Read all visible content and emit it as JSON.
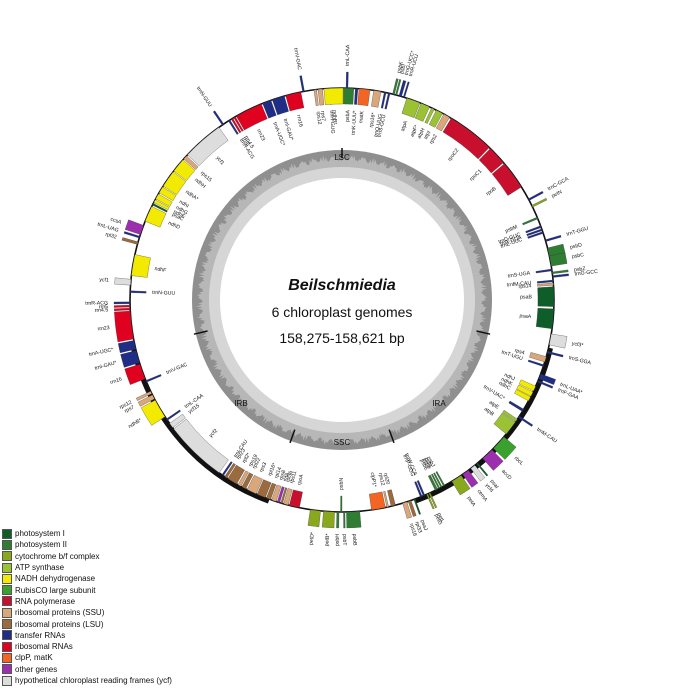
{
  "title": {
    "organism": "Beilschmiedia",
    "genomes": "6 chloroplast genomes",
    "size_range": "158,275-158,621 bp"
  },
  "regions": {
    "lsc": "LSC",
    "ssc": "SSC",
    "ira": "IRA",
    "irb": "IRB"
  },
  "legend": [
    {
      "label": "photosystem I",
      "color": "#0f5e2a"
    },
    {
      "label": "photosystem II",
      "color": "#2e7d32"
    },
    {
      "label": "cytochrome b/f complex",
      "color": "#8aa81e"
    },
    {
      "label": "ATP synthase",
      "color": "#9ac234"
    },
    {
      "label": "NADH dehydrogenase",
      "color": "#f2ea00"
    },
    {
      "label": "RubisCO large subunit",
      "color": "#3aa12f"
    },
    {
      "label": "RNA polymerase",
      "color": "#c8102e"
    },
    {
      "label": "ribosomal proteins (SSU)",
      "color": "#d9a77a"
    },
    {
      "label": "ribosomal proteins (LSU)",
      "color": "#9c6b3d"
    },
    {
      "label": "transfer RNAs",
      "color": "#1f2d86"
    },
    {
      "label": "ribosomal RNAs",
      "color": "#e00020"
    },
    {
      "label": "clpP, matK",
      "color": "#f26522"
    },
    {
      "label": "other genes",
      "color": "#9b2fae"
    },
    {
      "label": "hypothetical chloroplast reading frames (ycf)",
      "color": "#dddddd"
    }
  ],
  "genes": [
    {
      "name": "psbA",
      "start": 0.4,
      "end": 3.2,
      "strand": "in",
      "cat": "photosystem II"
    },
    {
      "name": "trnH-GUG",
      "start": 356.5,
      "end": 357.2,
      "strand": "in",
      "cat": "transfer RNAs"
    },
    {
      "name": "trnK-UUU*",
      "start": 3.6,
      "end": 4.3,
      "strand": "in",
      "cat": "transfer RNAs"
    },
    {
      "name": "matK",
      "start": 4.6,
      "end": 7.6,
      "strand": "in",
      "cat": "clpP, matK"
    },
    {
      "name": "rps16*",
      "start": 8.6,
      "end": 10.6,
      "strand": "in",
      "cat": "ribosomal proteins (SSU)"
    },
    {
      "name": "trnQ-UUG",
      "start": 11.5,
      "end": 12.0,
      "strand": "in",
      "cat": "transfer RNAs"
    },
    {
      "name": "trnS-GCU",
      "start": 12.6,
      "end": 13.1,
      "strand": "in",
      "cat": "transfer RNAs"
    },
    {
      "name": "psbK",
      "start": 13.8,
      "end": 14.3,
      "strand": "out",
      "cat": "photosystem II"
    },
    {
      "name": "psbI",
      "start": 14.6,
      "end": 15.0,
      "strand": "out",
      "cat": "photosystem II"
    },
    {
      "name": "trnG-UCC*",
      "start": 15.6,
      "end": 16.3,
      "strand": "out",
      "cat": "transfer RNAs"
    },
    {
      "name": "trnR-UCU",
      "start": 16.8,
      "end": 17.2,
      "strand": "out",
      "cat": "transfer RNAs"
    },
    {
      "name": "atpA",
      "start": 17.8,
      "end": 21.6,
      "strand": "in",
      "cat": "ATP synthase"
    },
    {
      "name": "atpF*",
      "start": 21.9,
      "end": 24.4,
      "strand": "in",
      "cat": "ATP synthase"
    },
    {
      "name": "atpH",
      "start": 25.0,
      "end": 25.8,
      "strand": "in",
      "cat": "ATP synthase"
    },
    {
      "name": "atpI",
      "start": 26.4,
      "end": 28.3,
      "strand": "in",
      "cat": "ATP synthase"
    },
    {
      "name": "rps2",
      "start": 28.7,
      "end": 30.5,
      "strand": "in",
      "cat": "ribosomal proteins (SSU)"
    },
    {
      "name": "rpoC2",
      "start": 31.0,
      "end": 44.0,
      "strand": "in",
      "cat": "RNA polymerase"
    },
    {
      "name": "rpoC1",
      "start": 44.4,
      "end": 49.6,
      "strand": "in",
      "cat": "RNA polymerase"
    },
    {
      "name": "rpoB",
      "start": 50.0,
      "end": 57.8,
      "strand": "in",
      "cat": "RNA polymerase"
    },
    {
      "name": "trnC-GCA",
      "start": 61.5,
      "end": 62.0,
      "strand": "out",
      "cat": "transfer RNAs"
    },
    {
      "name": "petN",
      "start": 63.5,
      "end": 64.0,
      "strand": "out",
      "cat": "cytochrome b/f complex"
    },
    {
      "name": "psbM",
      "start": 67.0,
      "end": 67.5,
      "strand": "in",
      "cat": "photosystem II"
    },
    {
      "name": "trnD-GUC",
      "start": 69.5,
      "end": 70.0,
      "strand": "in",
      "cat": "transfer RNAs"
    },
    {
      "name": "trnY-GUA",
      "start": 70.4,
      "end": 70.9,
      "strand": "in",
      "cat": "transfer RNAs"
    },
    {
      "name": "trnE-UUC",
      "start": 71.2,
      "end": 71.7,
      "strand": "in",
      "cat": "transfer RNAs"
    },
    {
      "name": "trnT-GGU",
      "start": 73.5,
      "end": 74.0,
      "strand": "out",
      "cat": "transfer RNAs"
    },
    {
      "name": "psbD",
      "start": 75.8,
      "end": 78.3,
      "strand": "out",
      "cat": "photosystem II"
    },
    {
      "name": "psbC",
      "start": 78.0,
      "end": 80.8,
      "strand": "out",
      "cat": "photosystem II"
    },
    {
      "name": "trnS-UGA",
      "start": 81.6,
      "end": 82.1,
      "strand": "in",
      "cat": "transfer RNAs"
    },
    {
      "name": "psbZ",
      "start": 82.4,
      "end": 82.9,
      "strand": "out",
      "cat": "photosystem II"
    },
    {
      "name": "trnG-GCC",
      "start": 83.4,
      "end": 83.9,
      "strand": "out",
      "cat": "transfer RNAs"
    },
    {
      "name": "trnfM-CAU",
      "start": 84.6,
      "end": 85.1,
      "strand": "in",
      "cat": "transfer RNAs"
    },
    {
      "name": "rps14",
      "start": 85.4,
      "end": 86.0,
      "strand": "in",
      "cat": "ribosomal proteins (SSU)"
    },
    {
      "name": "psaB",
      "start": 86.4,
      "end": 91.8,
      "strand": "in",
      "cat": "photosystem I"
    },
    {
      "name": "psaA",
      "start": 92.4,
      "end": 97.8,
      "strand": "in",
      "cat": "photosystem I"
    },
    {
      "name": "ycf3*",
      "start": 99.2,
      "end": 102.2,
      "strand": "out",
      "cat": "hypothetical chloroplast reading frames (ycf)"
    },
    {
      "name": "trnS-GGA",
      "start": 104.0,
      "end": 104.5,
      "strand": "out",
      "cat": "transfer RNAs"
    },
    {
      "name": "rps4",
      "start": 105.5,
      "end": 107.0,
      "strand": "in",
      "cat": "ribosomal proteins (SSU)"
    },
    {
      "name": "trnT-UGU",
      "start": 107.8,
      "end": 108.3,
      "strand": "in",
      "cat": "transfer RNAs"
    },
    {
      "name": "trnL-UAA*",
      "start": 110.4,
      "end": 111.8,
      "strand": "out",
      "cat": "transfer RNAs"
    },
    {
      "name": "trnF-GAA",
      "start": 112.3,
      "end": 112.8,
      "strand": "out",
      "cat": "transfer RNAs"
    },
    {
      "name": "ndhJ",
      "start": 114.0,
      "end": 115.4,
      "strand": "in",
      "cat": "NADH dehydrogenase"
    },
    {
      "name": "ndhK",
      "start": 115.7,
      "end": 117.0,
      "strand": "in",
      "cat": "NADH dehydrogenase"
    },
    {
      "name": "ndhC",
      "start": 117.2,
      "end": 118.4,
      "strand": "in",
      "cat": "NADH dehydrogenase"
    },
    {
      "name": "trnV-UAC*",
      "start": 121.0,
      "end": 121.7,
      "strand": "in",
      "cat": "transfer RNAs"
    },
    {
      "name": "trnM-CAU",
      "start": 123.2,
      "end": 123.7,
      "strand": "out",
      "cat": "transfer RNAs"
    },
    {
      "name": "atpE",
      "start": 124.2,
      "end": 125.0,
      "strand": "in",
      "cat": "ATP synthase"
    },
    {
      "name": "atpB",
      "start": 125.2,
      "end": 129.2,
      "strand": "in",
      "cat": "ATP synthase"
    },
    {
      "name": "rbcL",
      "start": 130.2,
      "end": 134.4,
      "strand": "out",
      "cat": "RubisCO large subunit"
    },
    {
      "name": "accD",
      "start": 135.0,
      "end": 138.4,
      "strand": "out",
      "cat": "other genes"
    },
    {
      "name": "psaI",
      "start": 140.2,
      "end": 140.6,
      "strand": "out",
      "cat": "photosystem I"
    },
    {
      "name": "ycf4",
      "start": 141.2,
      "end": 142.6,
      "strand": "out",
      "cat": "hypothetical chloroplast reading frames (ycf)"
    },
    {
      "name": "cemA",
      "start": 143.4,
      "end": 145.3,
      "strand": "out",
      "cat": "other genes"
    },
    {
      "name": "petA",
      "start": 145.8,
      "end": 148.8,
      "strand": "out",
      "cat": "cytochrome b/f complex"
    },
    {
      "name": "psbJ",
      "start": 151.0,
      "end": 151.4,
      "strand": "in",
      "cat": "photosystem II"
    },
    {
      "name": "psbL",
      "start": 151.8,
      "end": 152.2,
      "strand": "in",
      "cat": "photosystem II"
    },
    {
      "name": "psbF",
      "start": 152.5,
      "end": 152.9,
      "strand": "in",
      "cat": "photosystem II"
    },
    {
      "name": "psbE",
      "start": 153.2,
      "end": 153.9,
      "strand": "in",
      "cat": "photosystem II"
    },
    {
      "name": "petL",
      "start": 155.4,
      "end": 155.8,
      "strand": "out",
      "cat": "cytochrome b/f complex"
    },
    {
      "name": "petG",
      "start": 156.1,
      "end": 156.5,
      "strand": "out",
      "cat": "cytochrome b/f complex"
    },
    {
      "name": "trnW-CCA",
      "start": 157.0,
      "end": 157.5,
      "strand": "in",
      "cat": "transfer RNAs"
    },
    {
      "name": "trnP-UGG",
      "start": 157.8,
      "end": 158.3,
      "strand": "in",
      "cat": "transfer RNAs"
    },
    {
      "name": "psaJ",
      "start": 159.8,
      "end": 160.2,
      "strand": "out",
      "cat": "photosystem I"
    },
    {
      "name": "rpl33",
      "start": 161.0,
      "end": 161.8,
      "strand": "out",
      "cat": "ribosomal proteins (LSU)"
    },
    {
      "name": "rps18",
      "start": 162.2,
      "end": 163.4,
      "strand": "out",
      "cat": "ribosomal proteins (SSU)"
    },
    {
      "name": "rpl20",
      "start": 165.4,
      "end": 166.6,
      "strand": "in",
      "cat": "ribosomal proteins (LSU)"
    },
    {
      "name": "rps12",
      "start": 167.3,
      "end": 167.8,
      "strand": "in",
      "cat": "ribosomal proteins (SSU)"
    },
    {
      "name": "clpP1*",
      "start": 168.2,
      "end": 172.0,
      "strand": "in",
      "cat": "clpP, matK"
    },
    {
      "name": "psbB",
      "start": 175.2,
      "end": 178.8,
      "strand": "out",
      "cat": "photosystem II"
    },
    {
      "name": "psbT",
      "start": 179.2,
      "end": 179.6,
      "strand": "out",
      "cat": "photosystem II"
    },
    {
      "name": "psbN",
      "start": 180.0,
      "end": 180.4,
      "strand": "in",
      "cat": "photosystem II"
    },
    {
      "name": "psbH",
      "start": 180.8,
      "end": 181.4,
      "strand": "out",
      "cat": "photosystem II"
    },
    {
      "name": "petB*",
      "start": 182.0,
      "end": 185.0,
      "strand": "out",
      "cat": "cytochrome b/f complex"
    },
    {
      "name": "petD*",
      "start": 185.8,
      "end": 188.6,
      "strand": "out",
      "cat": "cytochrome b/f complex"
    },
    {
      "name": "rpoA",
      "start": 191.6,
      "end": 194.4,
      "strand": "in",
      "cat": "RNA polymerase"
    },
    {
      "name": "rps11",
      "start": 194.7,
      "end": 196.0,
      "strand": "in",
      "cat": "ribosomal proteins (SSU)"
    },
    {
      "name": "rpl36",
      "start": 196.3,
      "end": 196.8,
      "strand": "in",
      "cat": "ribosomal proteins (LSU)"
    },
    {
      "name": "infA",
      "start": 197.1,
      "end": 197.8,
      "strand": "in",
      "cat": "other genes"
    },
    {
      "name": "rps8",
      "start": 198.1,
      "end": 199.4,
      "strand": "in",
      "cat": "ribosomal proteins (SSU)"
    },
    {
      "name": "rpl14",
      "start": 199.7,
      "end": 200.9,
      "strand": "in",
      "cat": "ribosomal proteins (LSU)"
    },
    {
      "name": "rpl16*",
      "start": 201.2,
      "end": 203.6,
      "strand": "in",
      "cat": "ribosomal proteins (LSU)"
    },
    {
      "name": "rps3",
      "start": 203.9,
      "end": 206.6,
      "strand": "in",
      "cat": "ribosomal proteins (SSU)"
    },
    {
      "name": "rpl22",
      "start": 207.0,
      "end": 208.2,
      "strand": "in",
      "cat": "ribosomal proteins (LSU)"
    },
    {
      "name": "rps19",
      "start": 208.5,
      "end": 209.4,
      "strand": "in",
      "cat": "ribosomal proteins (SSU)"
    },
    {
      "name": "rpl2*",
      "start": 209.8,
      "end": 212.6,
      "strand": "in",
      "cat": "ribosomal proteins (LSU)"
    },
    {
      "name": "rpl23",
      "start": 212.9,
      "end": 213.6,
      "strand": "in",
      "cat": "ribosomal proteins (LSU)"
    },
    {
      "name": "trnI-CAU",
      "start": 214.0,
      "end": 214.5,
      "strand": "in",
      "cat": "transfer RNAs"
    },
    {
      "name": "ycf2",
      "start": 215.4,
      "end": 232.6,
      "strand": "in",
      "cat": "hypothetical chloroplast reading frames (ycf)"
    },
    {
      "name": "ycf15",
      "start": 233.0,
      "end": 234.4,
      "strand": "in",
      "cat": "hypothetical chloroplast reading frames (ycf)"
    },
    {
      "name": "trnL-CAA",
      "start": 235.4,
      "end": 235.9,
      "strand": "in",
      "cat": "transfer RNAs"
    },
    {
      "name": "ndhB*",
      "start": 236.6,
      "end": 241.8,
      "strand": "out",
      "cat": "NADH dehydrogenase"
    },
    {
      "name": "rps7",
      "start": 242.2,
      "end": 243.4,
      "strand": "out",
      "cat": "ribosomal proteins (SSU)"
    },
    {
      "name": "rps12",
      "start": 243.8,
      "end": 244.5,
      "strand": "out",
      "cat": "ribosomal proteins (SSU)"
    },
    {
      "name": "trnV-GAC",
      "start": 247.2,
      "end": 247.7,
      "strand": "in",
      "cat": "transfer RNAs"
    },
    {
      "name": "rrn16",
      "start": 248.2,
      "end": 252.4,
      "strand": "out",
      "cat": "ribosomal RNAs"
    },
    {
      "name": "trnI-GAU*",
      "start": 252.8,
      "end": 256.2,
      "strand": "out",
      "cat": "transfer RNAs"
    },
    {
      "name": "trnA-UGC*",
      "start": 256.6,
      "end": 259.0,
      "strand": "out",
      "cat": "transfer RNAs"
    },
    {
      "name": "rrn23",
      "start": 259.4,
      "end": 267.0,
      "strand": "out",
      "cat": "ribosomal RNAs"
    },
    {
      "name": "rrn4.5",
      "start": 267.3,
      "end": 267.8,
      "strand": "out",
      "cat": "ribosomal RNAs"
    },
    {
      "name": "rrn5",
      "start": 268.1,
      "end": 268.6,
      "strand": "out",
      "cat": "ribosomal RNAs"
    },
    {
      "name": "trnR-ACG",
      "start": 269.0,
      "end": 269.5,
      "strand": "out",
      "cat": "transfer RNAs"
    },
    {
      "name": "trnN-GUU",
      "start": 272.0,
      "end": 272.5,
      "strand": "in",
      "cat": "transfer RNAs"
    },
    {
      "name": "ycf1",
      "start": 274.0,
      "end": 275.6,
      "strand": "out",
      "cat": "hypothetical chloroplast reading frames (ycf)"
    },
    {
      "name": "ndhF",
      "start": 276.6,
      "end": 282.4,
      "strand": "in",
      "cat": "NADH dehydrogenase"
    },
    {
      "name": "rpl32",
      "start": 285.2,
      "end": 285.9,
      "strand": "out",
      "cat": "ribosomal proteins (LSU)"
    },
    {
      "name": "trnL-UAG",
      "start": 287.0,
      "end": 287.5,
      "strand": "out",
      "cat": "transfer RNAs"
    },
    {
      "name": "ccsA",
      "start": 288.0,
      "end": 290.6,
      "strand": "out",
      "cat": "other genes"
    },
    {
      "name": "ndhD",
      "start": 291.8,
      "end": 296.2,
      "strand": "in",
      "cat": "NADH dehydrogenase"
    },
    {
      "name": "psaC",
      "start": 296.6,
      "end": 297.1,
      "strand": "in",
      "cat": "photosystem I"
    },
    {
      "name": "ndhE",
      "start": 297.4,
      "end": 298.2,
      "strand": "in",
      "cat": "NADH dehydrogenase"
    },
    {
      "name": "ndhG",
      "start": 298.5,
      "end": 300.0,
      "strand": "in",
      "cat": "NADH dehydrogenase"
    },
    {
      "name": "ndhI",
      "start": 300.4,
      "end": 302.2,
      "strand": "in",
      "cat": "NADH dehydrogenase"
    },
    {
      "name": "ndhA*",
      "start": 302.5,
      "end": 307.2,
      "strand": "in",
      "cat": "NADH dehydrogenase"
    },
    {
      "name": "ndhH",
      "start": 307.5,
      "end": 311.4,
      "strand": "in",
      "cat": "NADH dehydrogenase"
    },
    {
      "name": "rps15",
      "start": 311.7,
      "end": 312.8,
      "strand": "in",
      "cat": "ribosomal proteins (SSU)"
    },
    {
      "name": "ycf1",
      "start": 313.2,
      "end": 324.5,
      "strand": "in",
      "cat": "hypothetical chloroplast reading frames (ycf)"
    },
    {
      "name": "trnN-GUU",
      "start": 325.6,
      "end": 326.1,
      "strand": "out",
      "cat": "transfer RNAs"
    },
    {
      "name": "trnR-ACG",
      "start": 327.6,
      "end": 328.1,
      "strand": "in",
      "cat": "transfer RNAs"
    },
    {
      "name": "rrn5",
      "start": 328.5,
      "end": 329.0,
      "strand": "in",
      "cat": "ribosomal RNAs"
    },
    {
      "name": "rrn4.5",
      "start": 329.3,
      "end": 329.8,
      "strand": "in",
      "cat": "ribosomal RNAs"
    },
    {
      "name": "rrn23",
      "start": 330.1,
      "end": 337.6,
      "strand": "in",
      "cat": "ribosomal RNAs"
    },
    {
      "name": "trnA-UGC*",
      "start": 338.0,
      "end": 340.4,
      "strand": "in",
      "cat": "transfer RNAs"
    },
    {
      "name": "trnI-GAU*",
      "start": 340.8,
      "end": 344.2,
      "strand": "in",
      "cat": "transfer RNAs"
    },
    {
      "name": "rrn16",
      "start": 344.6,
      "end": 348.8,
      "strand": "in",
      "cat": "ribosomal RNAs"
    },
    {
      "name": "trnV-GAC",
      "start": 349.3,
      "end": 349.8,
      "strand": "out",
      "cat": "transfer RNAs"
    },
    {
      "name": "rps12",
      "start": 352.4,
      "end": 353.1,
      "strand": "in",
      "cat": "ribosomal proteins (SSU)"
    },
    {
      "name": "rps7",
      "start": 353.5,
      "end": 354.7,
      "strand": "in",
      "cat": "ribosomal proteins (SSU)"
    },
    {
      "name": "ndhB*",
      "start": 355.1,
      "end": 360.3,
      "strand": "in",
      "cat": "NADH dehydrogenase"
    }
  ],
  "genes_ira_tail": [
    {
      "name": "trnL-CAA",
      "start": 1.1,
      "end": 1.6,
      "strand": "out",
      "cat": "transfer RNAs"
    }
  ]
}
